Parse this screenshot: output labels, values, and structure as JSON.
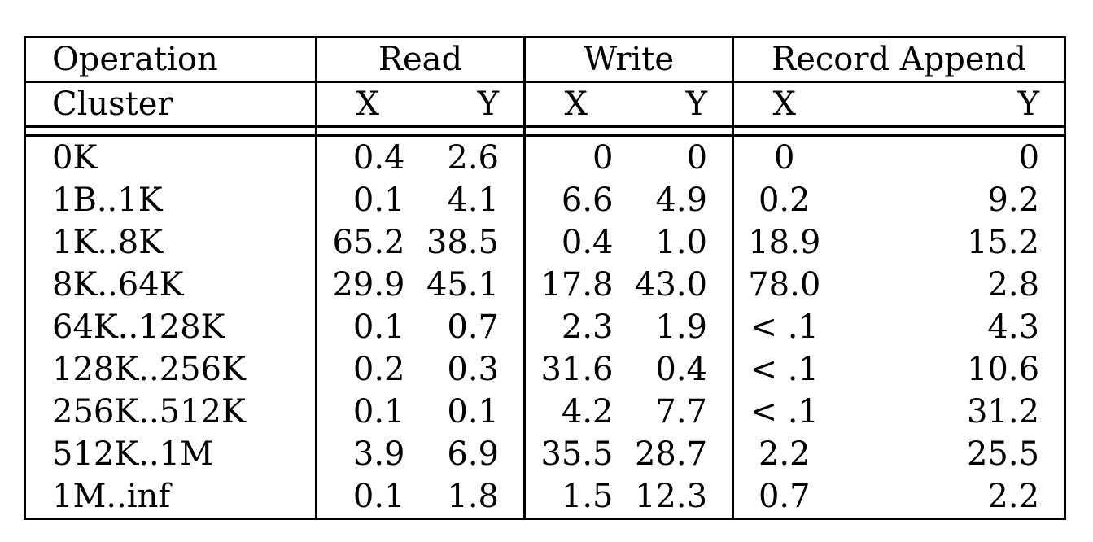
{
  "table": {
    "header_row1": {
      "label": "Operation",
      "groups": [
        "Read",
        "Write",
        "Record Append"
      ]
    },
    "header_row2": {
      "label": "Cluster",
      "sub": [
        "X",
        "Y",
        "X",
        "Y",
        "X",
        "Y"
      ]
    },
    "rows": [
      {
        "cluster": "0K",
        "read_x": "0.4",
        "read_y": "2.6",
        "write_x": "0",
        "write_y": "0",
        "append_x": "0",
        "append_y": "0"
      },
      {
        "cluster": "1B..1K",
        "read_x": "0.1",
        "read_y": "4.1",
        "write_x": "6.6",
        "write_y": "4.9",
        "append_x": "0.2",
        "append_y": "9.2"
      },
      {
        "cluster": "1K..8K",
        "read_x": "65.2",
        "read_y": "38.5",
        "write_x": "0.4",
        "write_y": "1.0",
        "append_x": "18.9",
        "append_y": "15.2"
      },
      {
        "cluster": "8K..64K",
        "read_x": "29.9",
        "read_y": "45.1",
        "write_x": "17.8",
        "write_y": "43.0",
        "append_x": "78.0",
        "append_y": "2.8"
      },
      {
        "cluster": "64K..128K",
        "read_x": "0.1",
        "read_y": "0.7",
        "write_x": "2.3",
        "write_y": "1.9",
        "append_x": "< .1",
        "append_y": "4.3"
      },
      {
        "cluster": "128K..256K",
        "read_x": "0.2",
        "read_y": "0.3",
        "write_x": "31.6",
        "write_y": "0.4",
        "append_x": "< .1",
        "append_y": "10.6"
      },
      {
        "cluster": "256K..512K",
        "read_x": "0.1",
        "read_y": "0.1",
        "write_x": "4.2",
        "write_y": "7.7",
        "append_x": "< .1",
        "append_y": "31.2"
      },
      {
        "cluster": "512K..1M",
        "read_x": "3.9",
        "read_y": "6.9",
        "write_x": "35.5",
        "write_y": "28.7",
        "append_x": "2.2",
        "append_y": "25.5"
      },
      {
        "cluster": "1M..inf",
        "read_x": "0.1",
        "read_y": "1.8",
        "write_x": "1.5",
        "write_y": "12.3",
        "append_x": "0.7",
        "append_y": "2.2"
      }
    ]
  }
}
